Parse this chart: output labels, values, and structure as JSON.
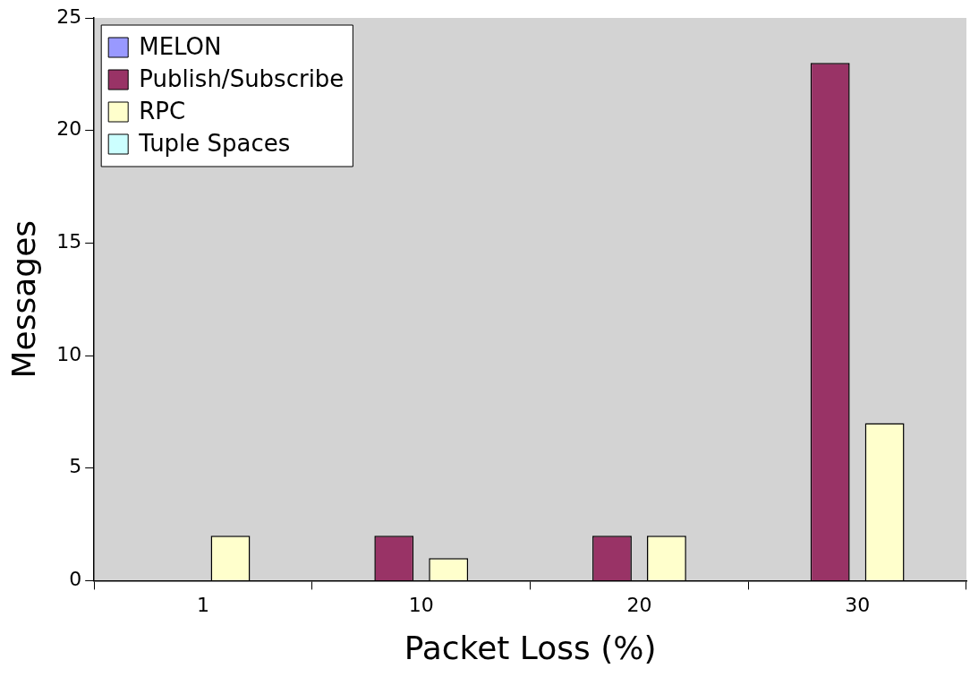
{
  "chart_data": {
    "type": "bar",
    "xlabel": "Packet Loss (%)",
    "ylabel": "Messages",
    "categories": [
      "1",
      "10",
      "20",
      "30"
    ],
    "series": [
      {
        "name": "MELON",
        "color": "#9999ff",
        "values": [
          0,
          0,
          0,
          0
        ]
      },
      {
        "name": "Publish/Subscribe",
        "color": "#993366",
        "values": [
          0,
          2,
          2,
          23
        ]
      },
      {
        "name": "RPC",
        "color": "#ffffcc",
        "values": [
          2,
          1,
          2,
          7
        ]
      },
      {
        "name": "Tuple Spaces",
        "color": "#ccffff",
        "values": [
          0,
          0,
          0,
          0
        ]
      }
    ],
    "ylim": [
      0,
      25
    ],
    "yticks": [
      0,
      5,
      10,
      15,
      20,
      25
    ],
    "grid": false,
    "legend": "top left"
  }
}
